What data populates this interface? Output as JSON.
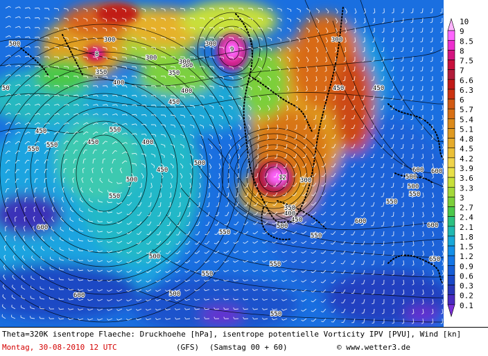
{
  "colorbar": {
    "ticks": [
      "10",
      "9",
      "8.5",
      "8",
      "7.5",
      "7",
      "6.6",
      "6.3",
      "6",
      "5.7",
      "5.4",
      "5.1",
      "4.8",
      "4.5",
      "4.2",
      "3.9",
      "3.6",
      "3.3",
      "3",
      "2.7",
      "2.4",
      "2.1",
      "1.8",
      "1.5",
      "1.2",
      "0.9",
      "0.6",
      "0.3",
      "0.2",
      "0.1"
    ],
    "colors": [
      "#ffb4ff",
      "#ff66ff",
      "#ee2ecf",
      "#d4147f",
      "#c8103c",
      "#b21c3a",
      "#c11a17",
      "#cc3311",
      "#d25a14",
      "#d86f14",
      "#dc8a1a",
      "#e09a20",
      "#e6ab2a",
      "#ecc036",
      "#f0d44a",
      "#e8e048",
      "#c8e03a",
      "#a4d83a",
      "#7ccf3a",
      "#4cc84a",
      "#2cc080",
      "#20b8b0",
      "#18a8d8",
      "#1490e8",
      "#1476e6",
      "#165ed6",
      "#1a48c8",
      "#2a36b8",
      "#4a2ac0",
      "#7a2ed8"
    ]
  },
  "contour_labels": [
    {
      "text": "500"
    },
    {
      "text": "300"
    },
    {
      "text": "8"
    },
    {
      "text": "300"
    },
    {
      "text": "350"
    },
    {
      "text": "300"
    },
    {
      "text": "9"
    },
    {
      "text": "300"
    },
    {
      "text": "300"
    },
    {
      "text": "300"
    },
    {
      "text": "350"
    },
    {
      "text": "400"
    },
    {
      "text": "400"
    },
    {
      "text": "450"
    },
    {
      "text": "450"
    },
    {
      "text": "550"
    },
    {
      "text": "550"
    },
    {
      "text": "450"
    },
    {
      "text": "400"
    },
    {
      "text": "450"
    },
    {
      "text": "450"
    },
    {
      "text": "500"
    },
    {
      "text": "550"
    },
    {
      "text": "500"
    },
    {
      "text": "12"
    },
    {
      "text": "300"
    },
    {
      "text": "350"
    },
    {
      "text": "400"
    },
    {
      "text": "450"
    },
    {
      "text": "500"
    },
    {
      "text": "550"
    },
    {
      "text": "600"
    },
    {
      "text": "600"
    },
    {
      "text": "500"
    },
    {
      "text": "500"
    },
    {
      "text": "550"
    },
    {
      "text": "600"
    },
    {
      "text": "550"
    },
    {
      "text": "600"
    },
    {
      "text": "650"
    },
    {
      "text": "550"
    },
    {
      "text": "550"
    },
    {
      "text": "500"
    },
    {
      "text": "550"
    },
    {
      "text": "550"
    },
    {
      "text": "600"
    },
    {
      "text": "600"
    },
    {
      "text": "500"
    },
    {
      "text": "550"
    },
    {
      "text": "450"
    },
    {
      "text": "50"
    }
  ],
  "footer": {
    "line1": "Theta=320K isentrope Flaeche: Druckhoehe [hPa], isentrope potentielle Vorticity IPV [PVU], Wind [kn]",
    "date": "Montag, 30-08-2010  12 UTC",
    "model": "(GFS)",
    "run": "(Samstag 00 + 60)",
    "copyright": "© www.wetter3.de"
  }
}
